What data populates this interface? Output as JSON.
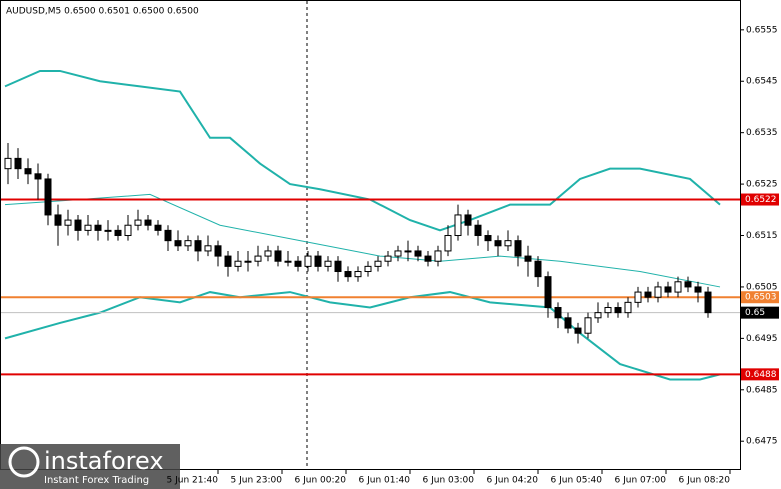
{
  "chart_data": {
    "type": "candlestick",
    "title": "AUDUSD,M5  0.6500 0.6501 0.6500 0.6500",
    "watermark": "instaforex",
    "watermark_subtitle": "Instant Forex Trading",
    "up_color": "#ffffff",
    "down_color": "#000000",
    "open": [
      0.6528,
      0.653,
      0.6528,
      0.6527,
      0.6526,
      0.6519,
      0.6517,
      0.6518,
      0.6516,
      0.6517,
      0.6516,
      0.6516,
      0.6515,
      0.6517,
      0.6518,
      0.6517,
      0.6516,
      0.6514,
      0.6513,
      0.6514,
      0.6512,
      0.6513,
      0.6511,
      0.6509,
      0.651,
      0.651,
      0.6511,
      0.6512,
      0.651,
      0.651,
      0.6509,
      0.6511,
      0.6509,
      0.651,
      0.6508,
      0.6507,
      0.6508,
      0.6509,
      0.651,
      0.6511,
      0.6512,
      0.6512,
      0.6511,
      0.651,
      0.6512,
      0.6515,
      0.6519,
      0.6517,
      0.6515,
      0.6514,
      0.6513,
      0.6514,
      0.6511,
      0.651,
      0.6507,
      0.6501,
      0.6499,
      0.6497,
      0.6496,
      0.6499,
      0.65,
      0.6501,
      0.65,
      0.6502,
      0.6504,
      0.6503,
      0.6505,
      0.6504,
      0.6506,
      0.6505,
      0.6504
    ],
    "high": [
      0.6533,
      0.6532,
      0.653,
      0.6529,
      0.6527,
      0.6521,
      0.652,
      0.6519,
      0.6519,
      0.6518,
      0.6518,
      0.6517,
      0.6519,
      0.652,
      0.6519,
      0.6518,
      0.6517,
      0.6516,
      0.6515,
      0.6515,
      0.6515,
      0.6514,
      0.6512,
      0.6512,
      0.6512,
      0.6513,
      0.6513,
      0.6513,
      0.6512,
      0.6511,
      0.6512,
      0.6512,
      0.6511,
      0.6511,
      0.6509,
      0.6509,
      0.651,
      0.6511,
      0.6512,
      0.6513,
      0.6514,
      0.6513,
      0.6512,
      0.6513,
      0.6517,
      0.6521,
      0.652,
      0.6518,
      0.6516,
      0.6515,
      0.6516,
      0.6515,
      0.6513,
      0.6511,
      0.6508,
      0.6502,
      0.65,
      0.6498,
      0.65,
      0.6502,
      0.6502,
      0.6502,
      0.6503,
      0.6505,
      0.6505,
      0.6506,
      0.6506,
      0.6507,
      0.6507,
      0.6506,
      0.6505
    ],
    "low": [
      0.6525,
      0.6526,
      0.6525,
      0.6522,
      0.6517,
      0.6513,
      0.6515,
      0.6514,
      0.6515,
      0.6514,
      0.6514,
      0.6514,
      0.6514,
      0.6516,
      0.6516,
      0.6515,
      0.6512,
      0.6512,
      0.6512,
      0.651,
      0.6511,
      0.6509,
      0.6507,
      0.6508,
      0.6508,
      0.6509,
      0.651,
      0.6509,
      0.6509,
      0.6508,
      0.6508,
      0.6508,
      0.6508,
      0.6506,
      0.6506,
      0.6506,
      0.6507,
      0.6508,
      0.6509,
      0.651,
      0.651,
      0.651,
      0.6509,
      0.6509,
      0.6511,
      0.6514,
      0.6515,
      0.6513,
      0.6512,
      0.6511,
      0.6512,
      0.6509,
      0.6507,
      0.6505,
      0.6499,
      0.6497,
      0.6496,
      0.6494,
      0.6495,
      0.6498,
      0.6499,
      0.6499,
      0.6499,
      0.6501,
      0.6502,
      0.6502,
      0.6503,
      0.6503,
      0.6504,
      0.6502,
      0.6499
    ],
    "close": [
      0.653,
      0.6528,
      0.6527,
      0.6526,
      0.6519,
      0.6517,
      0.6518,
      0.6516,
      0.6517,
      0.6516,
      0.6516,
      0.6515,
      0.6517,
      0.6518,
      0.6517,
      0.6516,
      0.6514,
      0.6513,
      0.6514,
      0.6512,
      0.6513,
      0.6511,
      0.6509,
      0.651,
      0.651,
      0.6511,
      0.6512,
      0.651,
      0.651,
      0.6509,
      0.6511,
      0.6509,
      0.651,
      0.6508,
      0.6507,
      0.6508,
      0.6509,
      0.651,
      0.6511,
      0.6512,
      0.6512,
      0.6511,
      0.651,
      0.6512,
      0.6515,
      0.6519,
      0.6517,
      0.6515,
      0.6514,
      0.6513,
      0.6514,
      0.6511,
      0.651,
      0.6507,
      0.6501,
      0.6499,
      0.6497,
      0.6496,
      0.6499,
      0.65,
      0.6501,
      0.65,
      0.6502,
      0.6504,
      0.6503,
      0.6505,
      0.6504,
      0.6506,
      0.6505,
      0.6504,
      0.65
    ],
    "bands": [
      {
        "color": "#20b2aa",
        "width": 2,
        "x": [
          -0.3,
          3.2,
          5.2,
          9.2,
          13.2,
          17.2,
          20.2,
          22.2,
          25.2,
          28.2,
          31.2,
          36.2,
          40.2,
          43.2,
          46.2,
          50.2,
          54.2,
          57.2,
          60.2,
          63.2,
          68.2,
          71.2
        ],
        "values": [
          0.6544,
          0.6547,
          0.6547,
          0.6545,
          0.6544,
          0.6543,
          0.6534,
          0.6534,
          0.6529,
          0.6525,
          0.6524,
          0.6522,
          0.6518,
          0.6516,
          0.6518,
          0.6521,
          0.6521,
          0.6526,
          0.6528,
          0.6528,
          0.6526,
          0.6521
        ]
      },
      {
        "color": "#20b2aa",
        "width": 1,
        "x": [
          -0.3,
          7.2,
          14.2,
          21.2,
          29.2,
          37.2,
          43.2,
          49.2,
          55.2,
          63.2,
          71.2
        ],
        "values": [
          0.6521,
          0.6522,
          0.6523,
          0.6517,
          0.6514,
          0.6511,
          0.651,
          0.6511,
          0.651,
          0.6508,
          0.6505
        ]
      },
      {
        "color": "#20b2aa",
        "width": 2,
        "x": [
          -0.3,
          5.2,
          9.2,
          13.2,
          17.2,
          20.2,
          23.2,
          28.2,
          32.2,
          36.2,
          40.2,
          44.2,
          48.2,
          54.2,
          57.2,
          61.2,
          66.2,
          69.2,
          71.2
        ],
        "values": [
          0.6495,
          0.6498,
          0.65,
          0.6503,
          0.6502,
          0.6504,
          0.6503,
          0.6504,
          0.6502,
          0.6501,
          0.6503,
          0.6504,
          0.6502,
          0.6501,
          0.6496,
          0.649,
          0.6487,
          0.6487,
          0.6488
        ]
      }
    ],
    "levels": [
      {
        "value": 0.6522,
        "color": "#e00000"
      },
      {
        "value": 0.6503,
        "color": "#f08030"
      },
      {
        "value": 0.65,
        "color": "#c0c0c0"
      },
      {
        "value": 0.6488,
        "color": "#e00000"
      }
    ],
    "xlim": [
      -0.8,
      73.2
    ],
    "xticks": [
      {
        "value": 21.0,
        "label": "5 Jun 21:40"
      },
      {
        "value": 27.4,
        "label": "5 Jun 23:00"
      },
      {
        "value": 33.8,
        "label": "6 Jun 00:20"
      },
      {
        "value": 40.2,
        "label": "6 Jun 01:40"
      },
      {
        "value": 46.6,
        "label": "6 Jun 03:00"
      },
      {
        "value": 53.0,
        "label": "6 Jun 04:20"
      },
      {
        "value": 59.4,
        "label": "6 Jun 05:40"
      },
      {
        "value": 65.8,
        "label": "6 Jun 07:00"
      },
      {
        "value": 72.2,
        "label": "6 Jun 08:20"
      }
    ],
    "ylim": [
      0.64694,
      0.65608
    ],
    "yticks": [
      0.6555,
      0.6545,
      0.6535,
      0.6525,
      0.6515,
      0.6505,
      0.6495,
      0.6485,
      0.6475
    ]
  }
}
